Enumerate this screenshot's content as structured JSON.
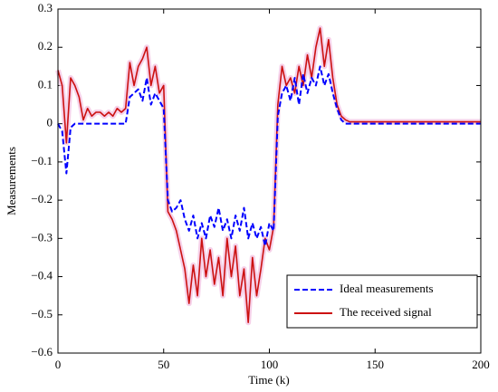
{
  "chart_data": {
    "type": "line",
    "xlabel": "Time (k)",
    "ylabel": "Measurements",
    "x": [
      0,
      2,
      4,
      6,
      8,
      10,
      12,
      14,
      16,
      18,
      20,
      22,
      24,
      26,
      28,
      30,
      32,
      34,
      36,
      38,
      40,
      42,
      44,
      46,
      48,
      50,
      52,
      54,
      56,
      58,
      60,
      62,
      64,
      66,
      68,
      70,
      72,
      74,
      76,
      78,
      80,
      82,
      84,
      86,
      88,
      90,
      92,
      94,
      96,
      98,
      100,
      102,
      104,
      106,
      108,
      110,
      112,
      114,
      116,
      118,
      120,
      122,
      124,
      126,
      128,
      130,
      132,
      134,
      136,
      138,
      140,
      150,
      160,
      170,
      180,
      190,
      200
    ],
    "series": [
      {
        "name": "Ideal measurements",
        "color": "#0000ff",
        "dash": true,
        "values": [
          0,
          -0.02,
          -0.13,
          -0.01,
          0,
          0,
          0,
          0,
          0,
          0,
          0,
          0,
          0,
          0,
          0,
          0,
          0,
          0.07,
          0.08,
          0.09,
          0.06,
          0.12,
          0.05,
          0.08,
          0.06,
          0.04,
          -0.2,
          -0.23,
          -0.22,
          -0.2,
          -0.25,
          -0.28,
          -0.24,
          -0.3,
          -0.26,
          -0.3,
          -0.24,
          -0.27,
          -0.22,
          -0.28,
          -0.25,
          -0.3,
          -0.24,
          -0.28,
          -0.22,
          -0.3,
          -0.26,
          -0.3,
          -0.27,
          -0.32,
          -0.26,
          -0.28,
          0.02,
          0.08,
          0.1,
          0.06,
          0.12,
          0.05,
          0.13,
          0.08,
          0.12,
          0.1,
          0.15,
          0.1,
          0.13,
          0.08,
          0.04,
          0.01,
          0,
          0,
          0,
          0,
          0,
          0,
          0,
          0,
          0
        ]
      },
      {
        "name": "The received signal",
        "color": "#cc1111",
        "dash": false,
        "values": [
          0.14,
          0.1,
          -0.05,
          0.12,
          0.1,
          0.07,
          0.01,
          0.04,
          0.02,
          0.03,
          0.03,
          0.02,
          0.03,
          0.02,
          0.04,
          0.03,
          0.04,
          0.16,
          0.1,
          0.15,
          0.17,
          0.2,
          0.1,
          0.15,
          0.08,
          0.1,
          -0.23,
          -0.25,
          -0.28,
          -0.33,
          -0.38,
          -0.47,
          -0.37,
          -0.45,
          -0.3,
          -0.4,
          -0.33,
          -0.42,
          -0.35,
          -0.45,
          -0.3,
          -0.4,
          -0.32,
          -0.45,
          -0.38,
          -0.52,
          -0.35,
          -0.45,
          -0.38,
          -0.3,
          -0.33,
          -0.27,
          0.05,
          0.15,
          0.1,
          0.12,
          0.08,
          0.15,
          0.1,
          0.18,
          0.12,
          0.2,
          0.25,
          0.15,
          0.22,
          0.12,
          0.05,
          0.02,
          0.01,
          0.005,
          0.005,
          0.005,
          0.005,
          0.005,
          0.005,
          0.005,
          0.005
        ]
      }
    ],
    "xlim": [
      0,
      200
    ],
    "xticks": [
      0,
      50,
      100,
      150,
      200
    ],
    "ylim": [
      -0.6,
      0.3
    ],
    "yticks": [
      {
        "value": -0.6,
        "label": "−0.6"
      },
      {
        "value": -0.5,
        "label": "−0.5"
      },
      {
        "value": -0.4,
        "label": "−0.4"
      },
      {
        "value": -0.3,
        "label": "−0.3"
      },
      {
        "value": -0.2,
        "label": "−0.2"
      },
      {
        "value": -0.1,
        "label": "−0.1"
      },
      0,
      0.1,
      0.2,
      0.3
    ],
    "legend": "lower right",
    "grid": false
  }
}
